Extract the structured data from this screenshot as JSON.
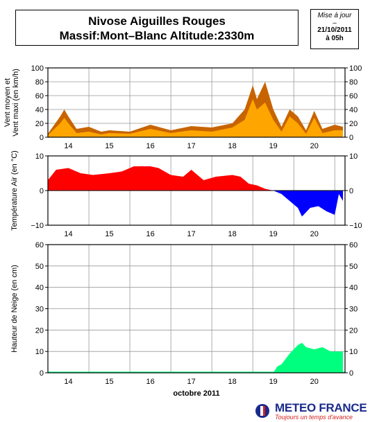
{
  "title_line1": "Nivose Aiguilles Rouges",
  "title_line2": "Massif:Mont–Blanc Altitude:2330m",
  "update": {
    "label": "Mise à jour",
    "dash": "–",
    "date": "21/10/2011",
    "time": "à 05h"
  },
  "month_label": "octobre 2011",
  "logo": {
    "name": "METEO FRANCE",
    "tagline": "Toujours un temps d'avance"
  },
  "colors": {
    "wind_max": "#c86400",
    "wind_mean": "#ffa500",
    "temp_pos": "#ff0000",
    "temp_neg": "#0000ff",
    "snow": "#00ff7f"
  },
  "chart_data": [
    {
      "type": "area",
      "ylabel": "Vent moyen et Vent maxi (en km/h)",
      "ylabel_lines": [
        "Vent moyen et",
        "Vent maxi (en km/h)"
      ],
      "ylim": [
        0,
        100
      ],
      "yticks": [
        "0",
        "20",
        "40",
        "60",
        "80",
        "100"
      ],
      "xticks": [
        "14",
        "15",
        "16",
        "17",
        "18",
        "19",
        "20"
      ],
      "x_days": [
        13.5,
        13.8,
        13.9,
        14.0,
        14.2,
        14.5,
        14.8,
        15.0,
        15.5,
        16.0,
        16.5,
        17.0,
        17.5,
        18.0,
        18.3,
        18.5,
        18.6,
        18.8,
        19.0,
        19.2,
        19.4,
        19.6,
        19.8,
        20.0,
        20.2,
        20.5,
        20.7
      ],
      "series": [
        {
          "name": "Vent maxi",
          "values": [
            5,
            30,
            40,
            30,
            12,
            15,
            8,
            10,
            8,
            18,
            10,
            16,
            14,
            20,
            40,
            75,
            55,
            80,
            40,
            15,
            40,
            30,
            10,
            38,
            12,
            18,
            15
          ]
        },
        {
          "name": "Vent moyen",
          "values": [
            3,
            20,
            28,
            20,
            6,
            8,
            4,
            6,
            5,
            12,
            6,
            10,
            8,
            14,
            25,
            55,
            40,
            50,
            25,
            8,
            30,
            20,
            5,
            28,
            6,
            10,
            10
          ]
        }
      ]
    },
    {
      "type": "area",
      "ylabel": "Température Air (en °C)",
      "ylim": [
        -10,
        10
      ],
      "yticks": [
        "−10",
        "0",
        "10"
      ],
      "xticks": [
        "14",
        "15",
        "16",
        "17",
        "18",
        "19",
        "20"
      ],
      "x_days": [
        13.5,
        13.7,
        14.0,
        14.3,
        14.6,
        15.0,
        15.3,
        15.6,
        16.0,
        16.2,
        16.5,
        16.8,
        17.0,
        17.3,
        17.6,
        18.0,
        18.2,
        18.4,
        18.6,
        18.8,
        19.0,
        19.2,
        19.4,
        19.6,
        19.7,
        19.9,
        20.1,
        20.3,
        20.5,
        20.6,
        20.7
      ],
      "values": [
        3,
        6,
        6.5,
        5,
        4.5,
        5,
        5.5,
        7,
        7,
        6.5,
        4.5,
        4,
        6,
        3,
        4,
        4.5,
        4,
        2,
        1.5,
        0.5,
        0,
        -1,
        -3,
        -5,
        -7.5,
        -5,
        -4.5,
        -6,
        -7,
        -1,
        -3
      ]
    },
    {
      "type": "area",
      "ylabel": "Hauteur de Neige (en cm)",
      "ylim": [
        0,
        60
      ],
      "yticks": [
        "0",
        "10",
        "20",
        "30",
        "40",
        "50",
        "60"
      ],
      "xticks": [
        "14",
        "15",
        "16",
        "17",
        "18",
        "19",
        "20"
      ],
      "xlabel": "octobre 2011",
      "x_days": [
        13.5,
        19.0,
        19.1,
        19.2,
        19.4,
        19.6,
        19.7,
        19.8,
        20.0,
        20.2,
        20.4,
        20.7
      ],
      "values": [
        0,
        0,
        3,
        4,
        9,
        13,
        14,
        12,
        11,
        12,
        10,
        10
      ]
    }
  ]
}
